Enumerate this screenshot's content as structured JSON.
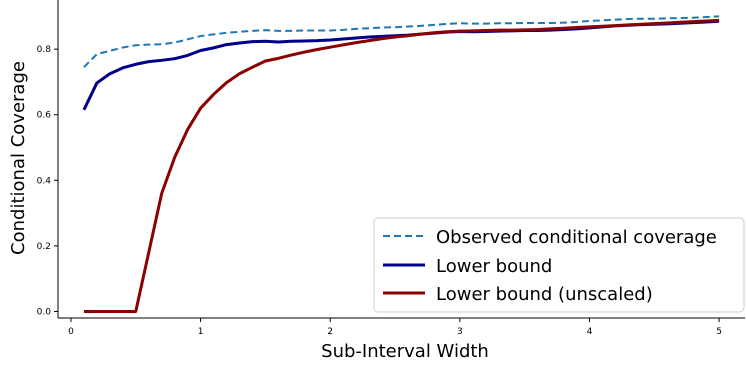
{
  "chart_data": {
    "type": "line",
    "xlabel": "Sub-Interval Width",
    "ylabel": "Conditional Coverage",
    "xlim": [
      -0.1,
      5.2
    ],
    "ylim": [
      -0.02,
      0.95
    ],
    "x_ticks": [
      0,
      1,
      2,
      3,
      4,
      5
    ],
    "y_ticks": [
      0.0,
      0.2,
      0.4,
      0.6,
      0.8
    ],
    "y_tick_labels": [
      "0.0",
      "0.2",
      "0.4",
      "0.6",
      "0.8"
    ],
    "legend_position": "lower-right",
    "grid": false,
    "x": [
      0.1,
      0.2,
      0.3,
      0.4,
      0.5,
      0.6,
      0.7,
      0.8,
      0.9,
      1.0,
      1.1,
      1.2,
      1.3,
      1.4,
      1.5,
      1.6,
      1.7,
      1.8,
      1.9,
      2.0,
      2.1,
      2.2,
      2.3,
      2.4,
      2.5,
      2.6,
      2.7,
      2.8,
      2.9,
      3.0,
      3.1,
      3.2,
      3.3,
      3.4,
      3.5,
      3.6,
      3.7,
      3.8,
      3.9,
      4.0,
      4.1,
      4.2,
      4.3,
      4.4,
      4.5,
      4.6,
      4.7,
      4.8,
      4.9,
      5.0
    ],
    "series": [
      {
        "name": "Observed conditional coverage",
        "color": "#1f77b4",
        "style": "dashed",
        "values": [
          0.745,
          0.785,
          0.795,
          0.805,
          0.812,
          0.814,
          0.815,
          0.82,
          0.83,
          0.84,
          0.845,
          0.85,
          0.853,
          0.856,
          0.858,
          0.856,
          0.856,
          0.857,
          0.857,
          0.857,
          0.859,
          0.862,
          0.864,
          0.866,
          0.867,
          0.869,
          0.871,
          0.874,
          0.877,
          0.879,
          0.878,
          0.878,
          0.879,
          0.879,
          0.88,
          0.88,
          0.88,
          0.881,
          0.883,
          0.886,
          0.888,
          0.89,
          0.892,
          0.893,
          0.893,
          0.894,
          0.895,
          0.896,
          0.898,
          0.9
        ]
      },
      {
        "name": "Lower bound",
        "color": "#00008b",
        "style": "solid",
        "values": [
          0.615,
          0.697,
          0.725,
          0.743,
          0.754,
          0.762,
          0.766,
          0.771,
          0.781,
          0.796,
          0.804,
          0.814,
          0.819,
          0.823,
          0.824,
          0.822,
          0.824,
          0.825,
          0.826,
          0.828,
          0.831,
          0.834,
          0.837,
          0.839,
          0.841,
          0.843,
          0.846,
          0.849,
          0.852,
          0.854,
          0.853,
          0.854,
          0.855,
          0.856,
          0.857,
          0.857,
          0.858,
          0.86,
          0.862,
          0.865,
          0.868,
          0.871,
          0.873,
          0.875,
          0.876,
          0.877,
          0.879,
          0.881,
          0.883,
          0.885
        ]
      },
      {
        "name": "Lower bound (unscaled)",
        "color": "#8b0000",
        "style": "solid",
        "values": [
          0.0,
          0.0,
          0.0,
          0.0,
          0.0,
          0.18,
          0.36,
          0.47,
          0.555,
          0.62,
          0.662,
          0.698,
          0.725,
          0.745,
          0.764,
          0.772,
          0.782,
          0.791,
          0.799,
          0.806,
          0.813,
          0.82,
          0.826,
          0.832,
          0.837,
          0.841,
          0.846,
          0.85,
          0.853,
          0.855,
          0.856,
          0.857,
          0.858,
          0.858,
          0.859,
          0.86,
          0.862,
          0.864,
          0.866,
          0.868,
          0.87,
          0.872,
          0.874,
          0.876,
          0.878,
          0.88,
          0.882,
          0.884,
          0.886,
          0.888
        ]
      }
    ]
  }
}
